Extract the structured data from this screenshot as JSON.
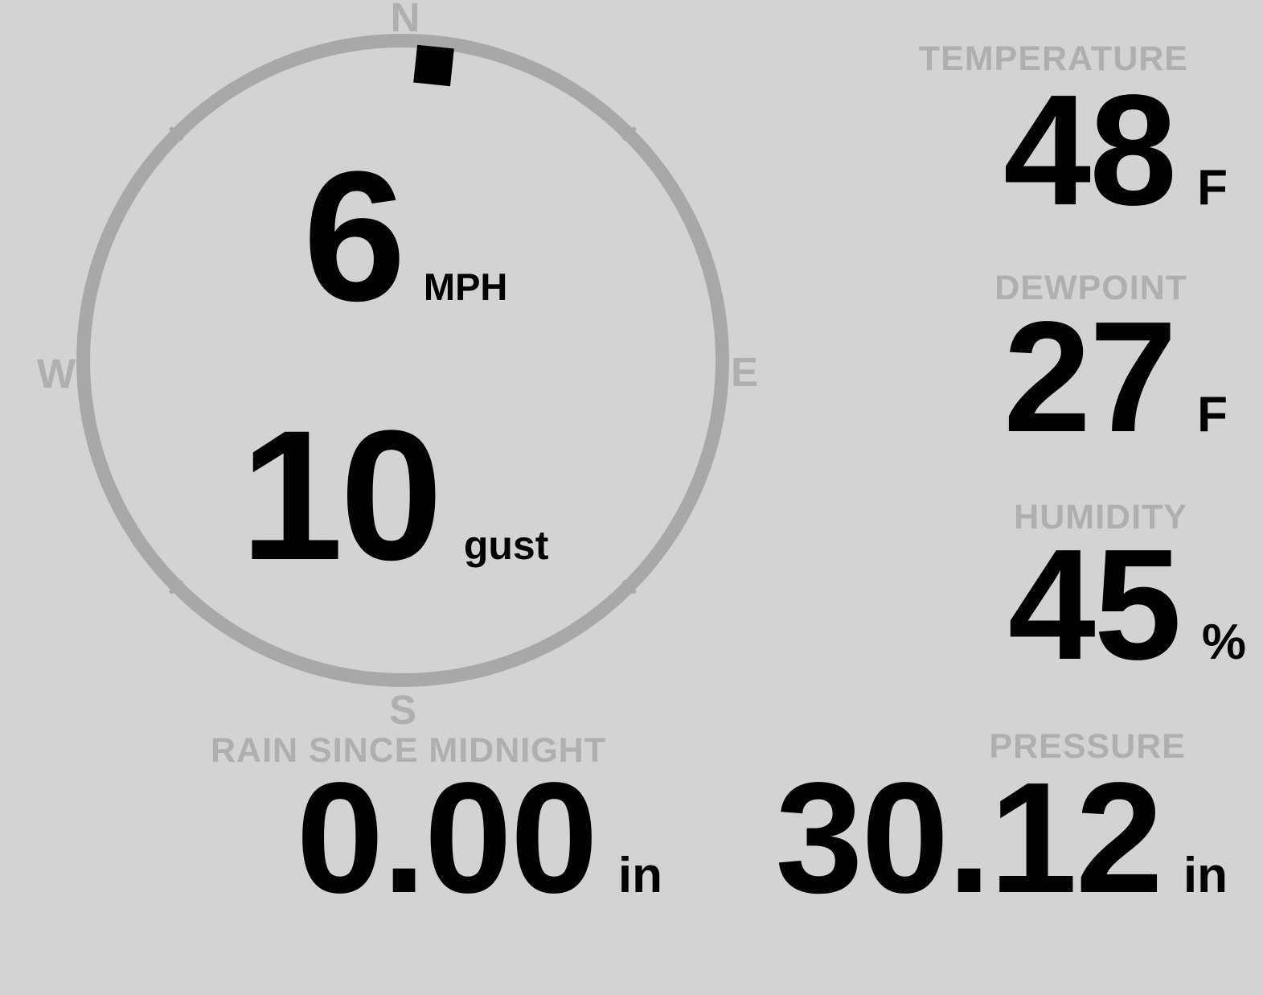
{
  "theme": {
    "background": "#d3d3d3",
    "muted_text_color": "#afafaf",
    "compass_ring_color": "#a8a8a8",
    "value_text_color": "#000000",
    "wind_marker_color": "#000000"
  },
  "wind": {
    "speed": "6",
    "speed_unit": "MPH",
    "gust": "10",
    "gust_unit": "gust",
    "direction_degrees": 6,
    "cardinals": {
      "north": "N",
      "east": "E",
      "south": "S",
      "west": "W"
    }
  },
  "metrics": {
    "temperature": {
      "label": "TEMPERATURE",
      "value": "48",
      "unit": "F"
    },
    "dewpoint": {
      "label": "DEWPOINT",
      "value": "27",
      "unit": "F"
    },
    "humidity": {
      "label": "HUMIDITY",
      "value": "45",
      "unit": "%"
    },
    "rain_since_midnight": {
      "label": "RAIN SINCE MIDNIGHT",
      "value": "0.00",
      "unit": "in"
    },
    "pressure": {
      "label": "PRESSURE",
      "value": "30.12",
      "unit": "in"
    }
  }
}
